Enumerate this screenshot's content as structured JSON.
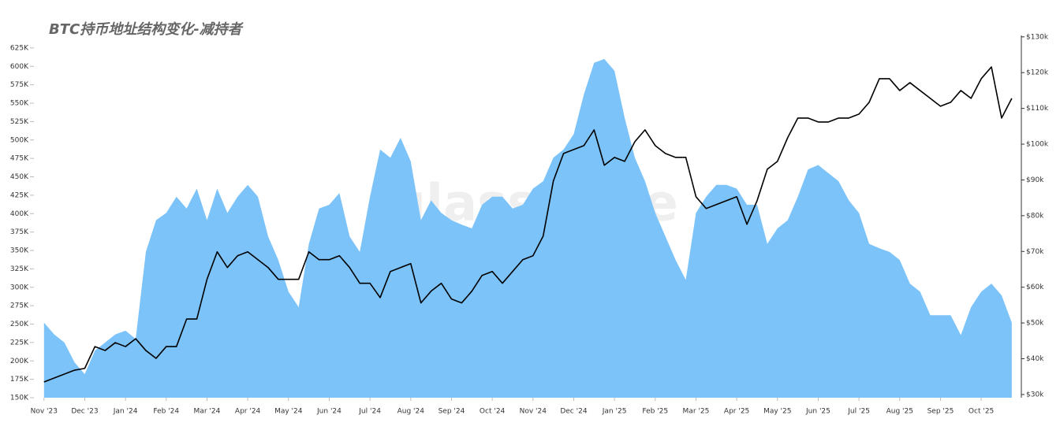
{
  "chart_data": {
    "type": "area",
    "title": "BTC持币地址结构变化-减持者",
    "watermark": "glassnode",
    "x": [
      0,
      0.25,
      0.5,
      0.75,
      1,
      1.25,
      1.5,
      1.75,
      2,
      2.25,
      2.5,
      2.75,
      3,
      3.25,
      3.5,
      3.75,
      4,
      4.25,
      4.5,
      4.75,
      5,
      5.25,
      5.5,
      5.75,
      6,
      6.25,
      6.5,
      6.75,
      7,
      7.25,
      7.5,
      7.75,
      8,
      8.25,
      8.5,
      8.75,
      9,
      9.25,
      9.5,
      9.75,
      10,
      10.25,
      10.5,
      10.75,
      11,
      11.25,
      11.5,
      11.75,
      12,
      12.25,
      12.5,
      12.75,
      13,
      13.25,
      13.5,
      13.75,
      14,
      14.25,
      14.5,
      14.75,
      15,
      15.25,
      15.5,
      15.75,
      16,
      16.25,
      16.5,
      16.75,
      17,
      17.25,
      17.5,
      17.75,
      18,
      18.25,
      18.5,
      18.75,
      19,
      19.25,
      19.5,
      19.75,
      20,
      20.25,
      20.5,
      20.75,
      21,
      21.25,
      21.5,
      21.75,
      22,
      22.25,
      22.5,
      22.75,
      23,
      23.25,
      23.5,
      23.75
    ],
    "xlim": [
      -0.17,
      23.83
    ],
    "xticks": [
      {
        "value": 0,
        "label": "Nov '23"
      },
      {
        "value": 1,
        "label": "Dec '23"
      },
      {
        "value": 2,
        "label": "Jan '24"
      },
      {
        "value": 3,
        "label": "Feb '24"
      },
      {
        "value": 4,
        "label": "Mar '24"
      },
      {
        "value": 5,
        "label": "Apr '24"
      },
      {
        "value": 6,
        "label": "May '24"
      },
      {
        "value": 7,
        "label": "Jun '24"
      },
      {
        "value": 8,
        "label": "Jul '24"
      },
      {
        "value": 9,
        "label": "Aug '24"
      },
      {
        "value": 10,
        "label": "Sep '24"
      },
      {
        "value": 11,
        "label": "Oct '24"
      },
      {
        "value": 12,
        "label": "Nov '24"
      },
      {
        "value": 13,
        "label": "Dec '24"
      },
      {
        "value": 14,
        "label": "Jan '25"
      },
      {
        "value": 15,
        "label": "Feb '25"
      },
      {
        "value": 16,
        "label": "Mar '25"
      },
      {
        "value": 17,
        "label": "Apr '25"
      },
      {
        "value": 18,
        "label": "May '25"
      },
      {
        "value": 19,
        "label": "Jun '25"
      },
      {
        "value": 20,
        "label": "Jul '25"
      },
      {
        "value": 21,
        "label": "Aug '25"
      },
      {
        "value": 22,
        "label": "Sep '25"
      },
      {
        "value": 23,
        "label": "Oct '25"
      }
    ],
    "ylim": [
      150000,
      642000
    ],
    "yticks": [
      {
        "value": 150000,
        "label": "150K"
      },
      {
        "value": 175000,
        "label": "175K"
      },
      {
        "value": 200000,
        "label": "200K"
      },
      {
        "value": 225000,
        "label": "225K"
      },
      {
        "value": 250000,
        "label": "250K"
      },
      {
        "value": 275000,
        "label": "275K"
      },
      {
        "value": 300000,
        "label": "300K"
      },
      {
        "value": 325000,
        "label": "325K"
      },
      {
        "value": 350000,
        "label": "350K"
      },
      {
        "value": 375000,
        "label": "375K"
      },
      {
        "value": 400000,
        "label": "400K"
      },
      {
        "value": 425000,
        "label": "425K"
      },
      {
        "value": 450000,
        "label": "450K"
      },
      {
        "value": 475000,
        "label": "475K"
      },
      {
        "value": 500000,
        "label": "500K"
      },
      {
        "value": 525000,
        "label": "525K"
      },
      {
        "value": 550000,
        "label": "550K"
      },
      {
        "value": 575000,
        "label": "575K"
      },
      {
        "value": 600000,
        "label": "600K"
      },
      {
        "value": 625000,
        "label": "625K"
      }
    ],
    "y2lim": [
      29100,
      130400
    ],
    "y2ticks": [
      {
        "value": 30000,
        "label": "$30k"
      },
      {
        "value": 40000,
        "label": "$40k"
      },
      {
        "value": 50000,
        "label": "$50k"
      },
      {
        "value": 60000,
        "label": "$60k"
      },
      {
        "value": 70000,
        "label": "$70k"
      },
      {
        "value": 80000,
        "label": "$80k"
      },
      {
        "value": 90000,
        "label": "$90k"
      },
      {
        "value": 100000,
        "label": "$100k"
      },
      {
        "value": 110000,
        "label": "$110k"
      },
      {
        "value": 120000,
        "label": "$120k"
      },
      {
        "value": 130000,
        "label": "$130k"
      }
    ],
    "series": [
      {
        "type": "area",
        "color": "#7cc3fa",
        "values": [
          252000,
          236000,
          225000,
          198000,
          182000,
          214000,
          225000,
          236000,
          241000,
          230000,
          348000,
          391000,
          401000,
          423000,
          407000,
          434000,
          391000,
          434000,
          401000,
          423000,
          439000,
          423000,
          369000,
          337000,
          294000,
          273000,
          359000,
          407000,
          412000,
          428000,
          369000,
          348000,
          423000,
          487000,
          476000,
          503000,
          471000,
          391000,
          418000,
          401000,
          391000,
          385000,
          380000,
          412000,
          423000,
          423000,
          407000,
          412000,
          434000,
          444000,
          476000,
          487000,
          508000,
          562000,
          605000,
          610000,
          594000,
          530000,
          476000,
          444000,
          401000,
          369000,
          337000,
          310000,
          401000,
          423000,
          439000,
          439000,
          434000,
          412000,
          412000,
          359000,
          380000,
          391000,
          423000,
          460000,
          466000,
          455000,
          444000,
          418000,
          401000,
          359000,
          353000,
          348000,
          337000,
          305000,
          294000,
          262000,
          262000,
          262000,
          235000,
          273000,
          294000,
          305000,
          289000,
          252000
        ]
      },
      {
        "type": "line",
        "axis": "y2",
        "color": "#000000",
        "values": [
          33500,
          34600,
          35700,
          36800,
          37300,
          43400,
          42300,
          44500,
          43400,
          45600,
          42300,
          40100,
          43400,
          43400,
          51100,
          51100,
          62200,
          69900,
          65500,
          68800,
          69900,
          67700,
          65500,
          62200,
          62200,
          62200,
          69900,
          67700,
          67700,
          68800,
          65500,
          61100,
          61100,
          57100,
          64400,
          65500,
          66600,
          55600,
          58900,
          61100,
          56700,
          55600,
          58900,
          63300,
          64400,
          61100,
          64400,
          67700,
          68800,
          74300,
          89700,
          97400,
          98500,
          99600,
          104000,
          94100,
          96300,
          95200,
          100700,
          104000,
          99600,
          97400,
          96300,
          96300,
          85300,
          82000,
          83100,
          84200,
          85300,
          77600,
          84200,
          93000,
          95200,
          101800,
          107300,
          107300,
          106200,
          106200,
          107300,
          107300,
          108400,
          111700,
          118300,
          118300,
          115000,
          117200,
          115000,
          112800,
          110600,
          111700,
          115000,
          112800,
          118300,
          121600,
          107300,
          112800
        ]
      }
    ]
  }
}
